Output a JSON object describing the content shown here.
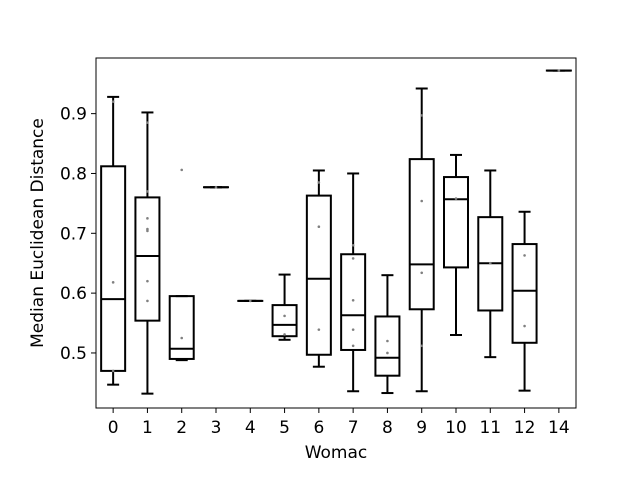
{
  "chart_data": {
    "type": "box",
    "xlabel": "Womac",
    "ylabel": "Median Euclidean Distance",
    "ylim": [
      0.408,
      0.993
    ],
    "yticks": [
      0.5,
      0.6,
      0.7,
      0.8,
      0.9
    ],
    "ytick_labels": [
      "0.5",
      "0.6",
      "0.7",
      "0.8",
      "0.9"
    ],
    "categories": [
      "0",
      "1",
      "2",
      "3",
      "4",
      "5",
      "6",
      "7",
      "8",
      "9",
      "10",
      "11",
      "12",
      "14"
    ],
    "boxes": [
      {
        "category": "0",
        "whislo": 0.447,
        "q1": 0.47,
        "med": 0.59,
        "q3": 0.812,
        "whishi": 0.928,
        "points": [
          0.47,
          0.618,
          0.92
        ]
      },
      {
        "category": "1",
        "whislo": 0.432,
        "q1": 0.554,
        "med": 0.662,
        "q3": 0.76,
        "whishi": 0.902,
        "points": [
          0.587,
          0.62,
          0.704,
          0.707,
          0.725,
          0.77,
          0.885
        ]
      },
      {
        "category": "2",
        "whislo": 0.488,
        "q1": 0.49,
        "med": 0.507,
        "q3": 0.595,
        "whishi": 0.595,
        "points": [
          0.525,
          0.806
        ]
      },
      {
        "category": "3",
        "whislo": 0.777,
        "q1": 0.777,
        "med": 0.777,
        "q3": 0.777,
        "whishi": 0.777,
        "points": [
          0.777
        ]
      },
      {
        "category": "4",
        "whislo": 0.587,
        "q1": 0.587,
        "med": 0.587,
        "q3": 0.587,
        "whishi": 0.587,
        "points": [
          0.587
        ]
      },
      {
        "category": "5",
        "whislo": 0.522,
        "q1": 0.528,
        "med": 0.547,
        "q3": 0.58,
        "whishi": 0.631,
        "points": [
          0.562,
          0.531
        ]
      },
      {
        "category": "6",
        "whislo": 0.477,
        "q1": 0.497,
        "med": 0.624,
        "q3": 0.763,
        "whishi": 0.805,
        "points": [
          0.539,
          0.711,
          0.785
        ]
      },
      {
        "category": "7",
        "whislo": 0.436,
        "q1": 0.505,
        "med": 0.563,
        "q3": 0.665,
        "whishi": 0.8,
        "points": [
          0.539,
          0.588,
          0.658,
          0.68,
          0.512
        ]
      },
      {
        "category": "8",
        "whislo": 0.433,
        "q1": 0.462,
        "med": 0.492,
        "q3": 0.561,
        "whishi": 0.63,
        "points": [
          0.5,
          0.52
        ]
      },
      {
        "category": "9",
        "whislo": 0.436,
        "q1": 0.573,
        "med": 0.648,
        "q3": 0.824,
        "whishi": 0.942,
        "points": [
          0.512,
          0.634,
          0.754,
          0.897
        ]
      },
      {
        "category": "10",
        "whislo": 0.53,
        "q1": 0.643,
        "med": 0.757,
        "q3": 0.794,
        "whishi": 0.831,
        "points": [
          0.758
        ]
      },
      {
        "category": "11",
        "whislo": 0.493,
        "q1": 0.571,
        "med": 0.65,
        "q3": 0.727,
        "whishi": 0.805,
        "points": [
          0.65
        ]
      },
      {
        "category": "12",
        "whislo": 0.437,
        "q1": 0.517,
        "med": 0.604,
        "q3": 0.682,
        "whishi": 0.736,
        "points": [
          0.545,
          0.663
        ]
      },
      {
        "category": "14",
        "whislo": 0.972,
        "q1": 0.972,
        "med": 0.972,
        "q3": 0.972,
        "whishi": 0.972,
        "points": [
          0.972
        ]
      }
    ],
    "grid": false,
    "legend": "none",
    "box_color": "#000000",
    "point_color": "#808080"
  }
}
